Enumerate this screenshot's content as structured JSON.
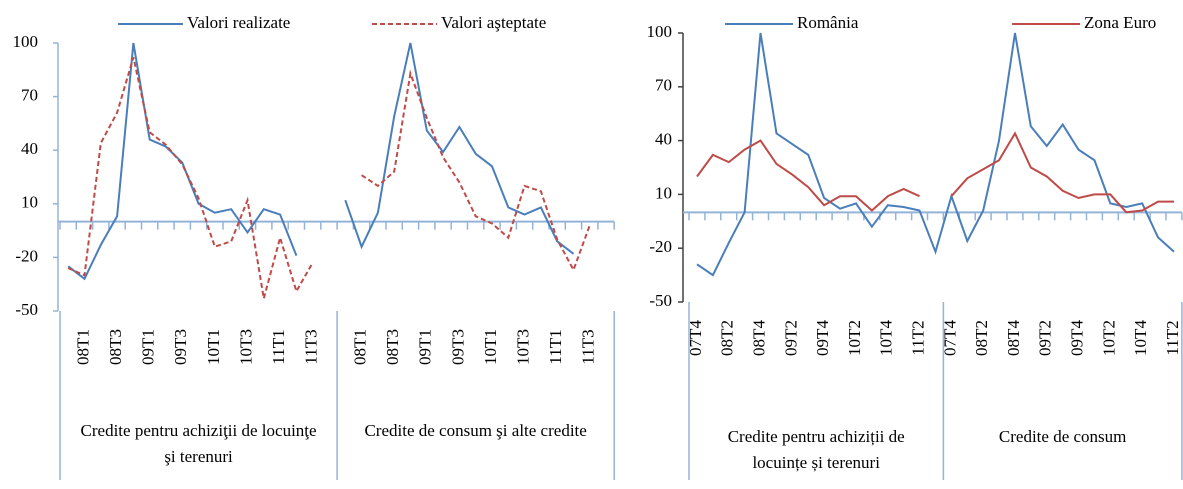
{
  "chart_data": [
    {
      "type": "line",
      "legend": "top",
      "groups": [
        {
          "label": "Credite pentru achiziţii de locuinţe şi terenuri",
          "categories": [
            null,
            "08T1",
            null,
            "08T3",
            null,
            "09T1",
            null,
            "09T3",
            null,
            "10T1",
            null,
            "10T3",
            null,
            "11T1",
            null,
            "11T3",
            null
          ]
        },
        {
          "label": "Credite de consum şi alte credite",
          "categories": [
            null,
            "08T1",
            null,
            "08T3",
            null,
            "09T1",
            null,
            "09T3",
            null,
            "10T1",
            null,
            "10T3",
            null,
            "11T1",
            null,
            "11T3",
            null
          ]
        }
      ],
      "series": [
        {
          "name": "Valori realizate",
          "color": "#4a7ebb",
          "style": "solid",
          "values": [
            -25,
            -32,
            -13,
            3,
            100,
            46,
            42,
            33,
            10,
            5,
            7,
            -6,
            7,
            4,
            -19,
            null,
            null,
            12,
            -14,
            5,
            59,
            100,
            51,
            39,
            53,
            38,
            31,
            8,
            4,
            8,
            -11,
            -18,
            null,
            null
          ]
        },
        {
          "name": "Valori aşteptate",
          "color": "#be4b48",
          "style": "dashed",
          "values": [
            -26,
            -30,
            44,
            61,
            92,
            50,
            43,
            32,
            13,
            -14,
            -11,
            12,
            -43,
            -9,
            -39,
            -23,
            null,
            null,
            26,
            20,
            28,
            83,
            58,
            36,
            22,
            3,
            -1,
            -9,
            20,
            17,
            -10,
            -27,
            -2,
            null
          ]
        }
      ],
      "ylim": [
        -50,
        100
      ],
      "yticks": [
        -50,
        -20,
        10,
        40,
        70,
        100
      ]
    },
    {
      "type": "line",
      "legend": "top",
      "groups": [
        {
          "label": "Credite pentru achiziții de locuințe și terenuri",
          "categories": [
            "07T4",
            null,
            "08T2",
            null,
            "08T4",
            null,
            "09T2",
            null,
            "09T4",
            null,
            "10T2",
            null,
            "10T4",
            null,
            "11T2",
            null
          ]
        },
        {
          "label": "Credite de consum",
          "categories": [
            "07T4",
            null,
            "08T2",
            null,
            "08T4",
            null,
            "09T2",
            null,
            "09T4",
            null,
            "10T2",
            null,
            "10T4",
            null,
            "11T2"
          ]
        }
      ],
      "series": [
        {
          "name": "România",
          "color": "#4a7ebb",
          "style": "solid",
          "values": [
            -29,
            -35,
            -17,
            0,
            100,
            44,
            38,
            32,
            8,
            2,
            5,
            -8,
            4,
            3,
            1,
            -22,
            9,
            -16,
            1,
            40,
            100,
            48,
            37,
            49,
            35,
            29,
            5,
            3,
            5,
            -14,
            -22
          ]
        },
        {
          "name": "Zona Euro",
          "color": "#be4b48",
          "style": "solid",
          "values": [
            20,
            32,
            28,
            35,
            40,
            27,
            21,
            14,
            4,
            9,
            9,
            1,
            9,
            13,
            9,
            null,
            9,
            19,
            24,
            29,
            44,
            25,
            20,
            12,
            8,
            10,
            10,
            0,
            1,
            6,
            6
          ]
        }
      ],
      "ylim": [
        -50,
        100
      ],
      "yticks": [
        -50,
        -20,
        10,
        40,
        70,
        100
      ]
    }
  ]
}
